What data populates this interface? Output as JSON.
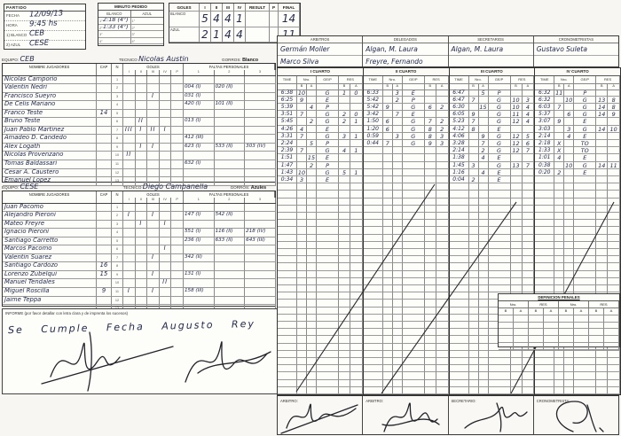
{
  "partido": {
    "title": "PARTIDO",
    "fields": [
      {
        "label": "FECHA",
        "value": "12/09/13"
      },
      {
        "label": "HORA",
        "value": "9:45 hs"
      },
      {
        "label": "1) BLANCO",
        "value": "CEB"
      },
      {
        "label": "2) AZUL",
        "value": "CESE"
      }
    ]
  },
  "minuto_pedido": {
    "title": "MINUTO PEDIDO",
    "cols": [
      "BLANCO",
      "AZUL"
    ],
    "ordinals": [
      "1°",
      "2°",
      "3°",
      "4°"
    ],
    "blanco": [
      "2:18 (4°)",
      "1:33 (4°)",
      "",
      ""
    ],
    "azul": [
      "",
      "",
      "",
      ""
    ]
  },
  "goles_summary": {
    "title": "GOLES",
    "headers": [
      "I",
      "II",
      "III",
      "IV",
      "RESULT",
      "P",
      "FINAL"
    ],
    "rows": [
      {
        "label": "BLANCO",
        "values": [
          "5",
          "4",
          "4",
          "1",
          "",
          "",
          "14"
        ]
      },
      {
        "label": "AZUL",
        "values": [
          "2",
          "1",
          "4",
          "4",
          "",
          "",
          "11"
        ]
      }
    ]
  },
  "officials": {
    "cols": [
      {
        "label": "ARBITROS",
        "names": [
          "Germán Moller",
          "Marco Silva"
        ]
      },
      {
        "label": "DELEGADOS",
        "names": [
          "Algan, M. Laura",
          "Freyre, Fernando"
        ]
      },
      {
        "label": "SECRETARIOS",
        "names": [
          "Algan, M. Laura",
          ""
        ]
      },
      {
        "label": "CRONOMETRISTAS",
        "names": [
          "Gustavo Suleta",
          ""
        ]
      }
    ]
  },
  "team_table_headers": {
    "name": "NOMBRE JUGADORES",
    "cap": "CAP",
    "n": "N",
    "goles": "GOLES",
    "goles_cols": [
      "I",
      "II",
      "III",
      "IV",
      "P"
    ],
    "faltas": "FALTAS PERSONALES",
    "faltas_cols": [
      "1",
      "2",
      "3"
    ]
  },
  "teams": [
    {
      "equipo_label": "EQUIPO:",
      "equipo": "CEB",
      "tecnico_label": "TECNICO",
      "tecnico": "Nicolas Austin",
      "gorros_label": "GORROS:",
      "gorros": "Blanco",
      "players": [
        {
          "n": "1",
          "name": "Nicolas Camporio",
          "cap": "",
          "g": [
            "",
            "",
            "",
            "",
            ""
          ],
          "f": [
            "",
            "",
            ""
          ]
        },
        {
          "n": "2",
          "name": "Valentin Nedri",
          "cap": "",
          "g": [
            "",
            "",
            "",
            "",
            ""
          ],
          "f": [
            "004 (I)",
            "020 (II)",
            ""
          ]
        },
        {
          "n": "3",
          "name": "Francisco Sueyro",
          "cap": "",
          "g": [
            "",
            "",
            "I",
            "",
            ""
          ],
          "f": [
            "031 (I)",
            "",
            ""
          ]
        },
        {
          "n": "4",
          "name": "De Celis Mariano",
          "cap": "",
          "g": [
            "",
            "",
            "",
            "",
            ""
          ],
          "f": [
            "420 (I)",
            "101 (II)",
            ""
          ]
        },
        {
          "n": "5",
          "name": "Franco Teste",
          "cap": "14",
          "g": [
            "",
            "",
            "",
            "",
            ""
          ],
          "f": [
            "",
            "",
            ""
          ]
        },
        {
          "n": "6",
          "name": "Bruno Teste",
          "cap": "",
          "g": [
            "",
            "II",
            "",
            "",
            ""
          ],
          "f": [
            "013 (I)",
            "",
            ""
          ]
        },
        {
          "n": "7",
          "name": "Juan Pablo Martinez",
          "cap": "",
          "g": [
            "III",
            "I",
            "II",
            "I",
            ""
          ],
          "f": [
            "",
            "",
            ""
          ]
        },
        {
          "n": "8",
          "name": "Amadeo D. Candedo",
          "cap": "",
          "g": [
            "",
            "",
            "",
            "",
            ""
          ],
          "f": [
            "412 (III)",
            "",
            ""
          ]
        },
        {
          "n": "9",
          "name": "Alex Logath",
          "cap": "",
          "g": [
            "",
            "I",
            "I",
            "",
            ""
          ],
          "f": [
            "623 (I)",
            "533 (II)",
            "303 (IV)"
          ]
        },
        {
          "n": "10",
          "name": "Nicolas Provenzano",
          "cap": "",
          "g": [
            "II",
            "",
            "",
            "",
            ""
          ],
          "f": [
            "",
            "",
            ""
          ]
        },
        {
          "n": "11",
          "name": "Tomas Baldassari",
          "cap": "",
          "g": [
            "",
            "",
            "",
            "",
            ""
          ],
          "f": [
            "632 (I)",
            "",
            ""
          ]
        },
        {
          "n": "12",
          "name": "Cesar A. Caustero",
          "cap": "",
          "g": [
            "",
            "",
            "",
            "",
            ""
          ],
          "f": [
            "",
            "",
            ""
          ]
        },
        {
          "n": "13",
          "name": "Emanuel Lopez",
          "cap": "",
          "g": [
            "",
            "",
            "",
            "",
            ""
          ],
          "f": [
            "",
            "",
            ""
          ]
        }
      ]
    },
    {
      "equipo_label": "EQUIPO:",
      "equipo": "CESE",
      "tecnico_label": "TECNICO",
      "tecnico": "Diego Campanella",
      "gorros_label": "GORROS:",
      "gorros": "Azules",
      "players": [
        {
          "n": "1",
          "name": "Juan Pacomo",
          "cap": "",
          "g": [
            "",
            "",
            "",
            "",
            ""
          ],
          "f": [
            "",
            "",
            ""
          ]
        },
        {
          "n": "2",
          "name": "Alejandro Pieroni",
          "cap": "",
          "g": [
            "I",
            "",
            "I",
            "",
            ""
          ],
          "f": [
            "147 (I)",
            "542 (II)",
            ""
          ]
        },
        {
          "n": "3",
          "name": "Mateo Freyre",
          "cap": "",
          "g": [
            "",
            "I",
            "",
            "I",
            ""
          ],
          "f": [
            "",
            "",
            ""
          ]
        },
        {
          "n": "4",
          "name": "Ignacio Pieroni",
          "cap": "",
          "g": [
            "",
            "",
            "",
            "",
            ""
          ],
          "f": [
            "551 (I)",
            "116 (II)",
            "218 (IV)"
          ]
        },
        {
          "n": "5",
          "name": "Santiago Carretto",
          "cap": "",
          "g": [
            "",
            "",
            "",
            "",
            ""
          ],
          "f": [
            "236 (I)",
            "633 (II)",
            "643 (III)"
          ]
        },
        {
          "n": "6",
          "name": "Marcos Pacomo",
          "cap": "",
          "g": [
            "",
            "",
            "",
            "I",
            ""
          ],
          "f": [
            "",
            "",
            ""
          ]
        },
        {
          "n": "7",
          "name": "Valentin Suarez",
          "cap": "",
          "g": [
            "",
            "",
            "I",
            "",
            ""
          ],
          "f": [
            "342 (II)",
            "",
            ""
          ]
        },
        {
          "n": "8",
          "name": "Santiago Cardozo",
          "cap": "16",
          "g": [
            "",
            "",
            "",
            "",
            ""
          ],
          "f": [
            "",
            "",
            ""
          ]
        },
        {
          "n": "9",
          "name": "Lorenzo Zubelqui",
          "cap": "15",
          "g": [
            "",
            "",
            "I",
            "",
            ""
          ],
          "f": [
            "131 (I)",
            "",
            ""
          ]
        },
        {
          "n": "10",
          "name": "Manuel Tendales",
          "cap": "",
          "g": [
            "",
            "",
            "",
            "II",
            ""
          ],
          "f": [
            "",
            "",
            ""
          ]
        },
        {
          "n": "11",
          "name": "Miguel Roscilla",
          "cap": "9",
          "g": [
            "I",
            "",
            "I",
            "",
            ""
          ],
          "f": [
            "158 (III)",
            "",
            ""
          ]
        },
        {
          "n": "12",
          "name": "Jaime Teppa",
          "cap": "",
          "g": [
            "",
            "",
            "",
            "",
            ""
          ],
          "f": [
            "",
            "",
            ""
          ]
        },
        {
          "n": "13",
          "name": "",
          "cap": "",
          "g": [
            "",
            "",
            "",
            "",
            ""
          ],
          "f": [
            "",
            "",
            ""
          ]
        }
      ]
    }
  ],
  "quarter_headers": {
    "time": "TIME",
    "nro": "Nro.",
    "gep": "GE/P",
    "res": "RES",
    "b": "B",
    "a": "A"
  },
  "quarters": [
    {
      "title": "I CUARTO",
      "rows": [
        {
          "t": "6:38",
          "nb": "10",
          "na": "",
          "g": "G",
          "rb": "1",
          "ra": "0"
        },
        {
          "t": "6:25",
          "nb": "9",
          "na": "",
          "g": "E",
          "rb": "",
          "ra": ""
        },
        {
          "t": "5:39",
          "nb": "",
          "na": "4",
          "g": "P",
          "rb": "",
          "ra": ""
        },
        {
          "t": "3:51",
          "nb": "7",
          "na": "",
          "g": "G",
          "rb": "2",
          "ra": "0"
        },
        {
          "t": "5:45",
          "nb": "",
          "na": "2",
          "g": "G",
          "rb": "2",
          "ra": "1"
        },
        {
          "t": "4:26",
          "nb": "4",
          "na": "",
          "g": "E",
          "rb": "",
          "ra": ""
        },
        {
          "t": "3:31",
          "nb": "7",
          "na": "",
          "g": "G",
          "rb": "3",
          "ra": "1"
        },
        {
          "t": "2:24",
          "nb": "",
          "na": "5",
          "g": "P",
          "rb": "",
          "ra": ""
        },
        {
          "t": "2:39",
          "nb": "7",
          "na": "",
          "g": "G",
          "rb": "4",
          "ra": "1"
        },
        {
          "t": "1:51",
          "nb": "",
          "na": "15",
          "g": "E",
          "rb": "",
          "ra": ""
        },
        {
          "t": "1:47",
          "nb": "",
          "na": "2",
          "g": "P",
          "rb": "",
          "ra": ""
        },
        {
          "t": "1:43",
          "nb": "10",
          "na": "",
          "g": "G",
          "rb": "5",
          "ra": "1"
        },
        {
          "t": "0:34",
          "nb": "3",
          "na": "",
          "g": "E",
          "rb": "",
          "ra": ""
        }
      ]
    },
    {
      "title": "II CUARTO",
      "rows": [
        {
          "t": "6:33",
          "nb": "",
          "na": "3",
          "g": "E",
          "rb": "",
          "ra": ""
        },
        {
          "t": "5:42",
          "nb": "",
          "na": "2",
          "g": "P",
          "rb": "",
          "ra": ""
        },
        {
          "t": "5:42",
          "nb": "9",
          "na": "",
          "g": "G",
          "rb": "6",
          "ra": "2"
        },
        {
          "t": "3:42",
          "nb": "",
          "na": "7",
          "g": "E",
          "rb": "",
          "ra": ""
        },
        {
          "t": "1:50",
          "nb": "6",
          "na": "",
          "g": "G",
          "rb": "7",
          "ra": "2"
        },
        {
          "t": "1:20",
          "nb": "6",
          "na": "",
          "g": "G",
          "rb": "8",
          "ra": "2"
        },
        {
          "t": "0:59",
          "nb": "",
          "na": "3",
          "g": "G",
          "rb": "8",
          "ra": "3"
        },
        {
          "t": "0:44",
          "nb": "7",
          "na": "",
          "g": "G",
          "rb": "9",
          "ra": "3"
        }
      ]
    },
    {
      "title": "III CUARTO",
      "rows": [
        {
          "t": "6:47",
          "nb": "",
          "na": "5",
          "g": "P",
          "rb": "",
          "ra": ""
        },
        {
          "t": "6:47",
          "nb": "7",
          "na": "",
          "g": "G",
          "rb": "10",
          "ra": "3"
        },
        {
          "t": "6:30",
          "nb": "",
          "na": "15",
          "g": "G",
          "rb": "10",
          "ra": "4"
        },
        {
          "t": "6:05",
          "nb": "9",
          "na": "",
          "g": "G",
          "rb": "11",
          "ra": "4"
        },
        {
          "t": "5:23",
          "nb": "7",
          "na": "",
          "g": "G",
          "rb": "12",
          "ra": "4"
        },
        {
          "t": "4:12",
          "nb": "8",
          "na": "",
          "g": "E",
          "rb": "",
          "ra": ""
        },
        {
          "t": "4:06",
          "nb": "",
          "na": "9",
          "g": "G",
          "rb": "12",
          "ra": "5"
        },
        {
          "t": "3:28",
          "nb": "",
          "na": "7",
          "g": "G",
          "rb": "12",
          "ra": "6"
        },
        {
          "t": "2:14",
          "nb": "",
          "na": "2",
          "g": "G",
          "rb": "12",
          "ra": "7"
        },
        {
          "t": "1:38",
          "nb": "",
          "na": "4",
          "g": "E",
          "rb": "",
          "ra": ""
        },
        {
          "t": "1:45",
          "nb": "3",
          "na": "",
          "g": "G",
          "rb": "13",
          "ra": "7"
        },
        {
          "t": "1:16",
          "nb": "",
          "na": "4",
          "g": "E",
          "rb": "",
          "ra": ""
        },
        {
          "t": "0:04",
          "nb": "2",
          "na": "",
          "g": "E",
          "rb": "",
          "ra": ""
        }
      ]
    },
    {
      "title": "IV CUARTO",
      "rows": [
        {
          "t": "6:32",
          "nb": "11",
          "na": "",
          "g": "P",
          "rb": "",
          "ra": ""
        },
        {
          "t": "6:32",
          "nb": "",
          "na": "10",
          "g": "G",
          "rb": "13",
          "ra": "8"
        },
        {
          "t": "6:03",
          "nb": "7",
          "na": "",
          "g": "G",
          "rb": "14",
          "ra": "8"
        },
        {
          "t": "5:37",
          "nb": "",
          "na": "6",
          "g": "G",
          "rb": "14",
          "ra": "9"
        },
        {
          "t": "3:07",
          "nb": "9",
          "na": "",
          "g": "E",
          "rb": "",
          "ra": ""
        },
        {
          "t": "3:03",
          "nb": "",
          "na": "3",
          "g": "G",
          "rb": "14",
          "ra": "10"
        },
        {
          "t": "2:14",
          "nb": "",
          "na": "4",
          "g": "E",
          "rb": "",
          "ra": ""
        },
        {
          "t": "2:18",
          "nb": "X",
          "na": "",
          "g": "TO",
          "rb": "",
          "ra": ""
        },
        {
          "t": "1:33",
          "nb": "X",
          "na": "",
          "g": "TO",
          "rb": "",
          "ra": ""
        },
        {
          "t": "1:01",
          "nb": "4",
          "na": "",
          "g": "E",
          "rb": "",
          "ra": ""
        },
        {
          "t": "0:38",
          "nb": "",
          "na": "10",
          "g": "G",
          "rb": "14",
          "ra": "11"
        },
        {
          "t": "0:20",
          "nb": "2",
          "na": "",
          "g": "E",
          "rb": "",
          "ra": ""
        }
      ]
    }
  ],
  "definicion_penales": {
    "title": "DEFINICION PENALES",
    "cols": [
      "Nro.",
      "RES",
      "Nro.",
      "RES"
    ],
    "b": "B",
    "a": "A"
  },
  "informe": {
    "label": "INFORME (por favor detallar con letra clara y de imprenta los sucesos)",
    "text": "Se Cumple Fecha Augusto Rey"
  },
  "bottom_officials": [
    "ARBITRO:",
    "ARBITRO:",
    "SECRETARIO:",
    "CRONOMETRISTA:"
  ]
}
